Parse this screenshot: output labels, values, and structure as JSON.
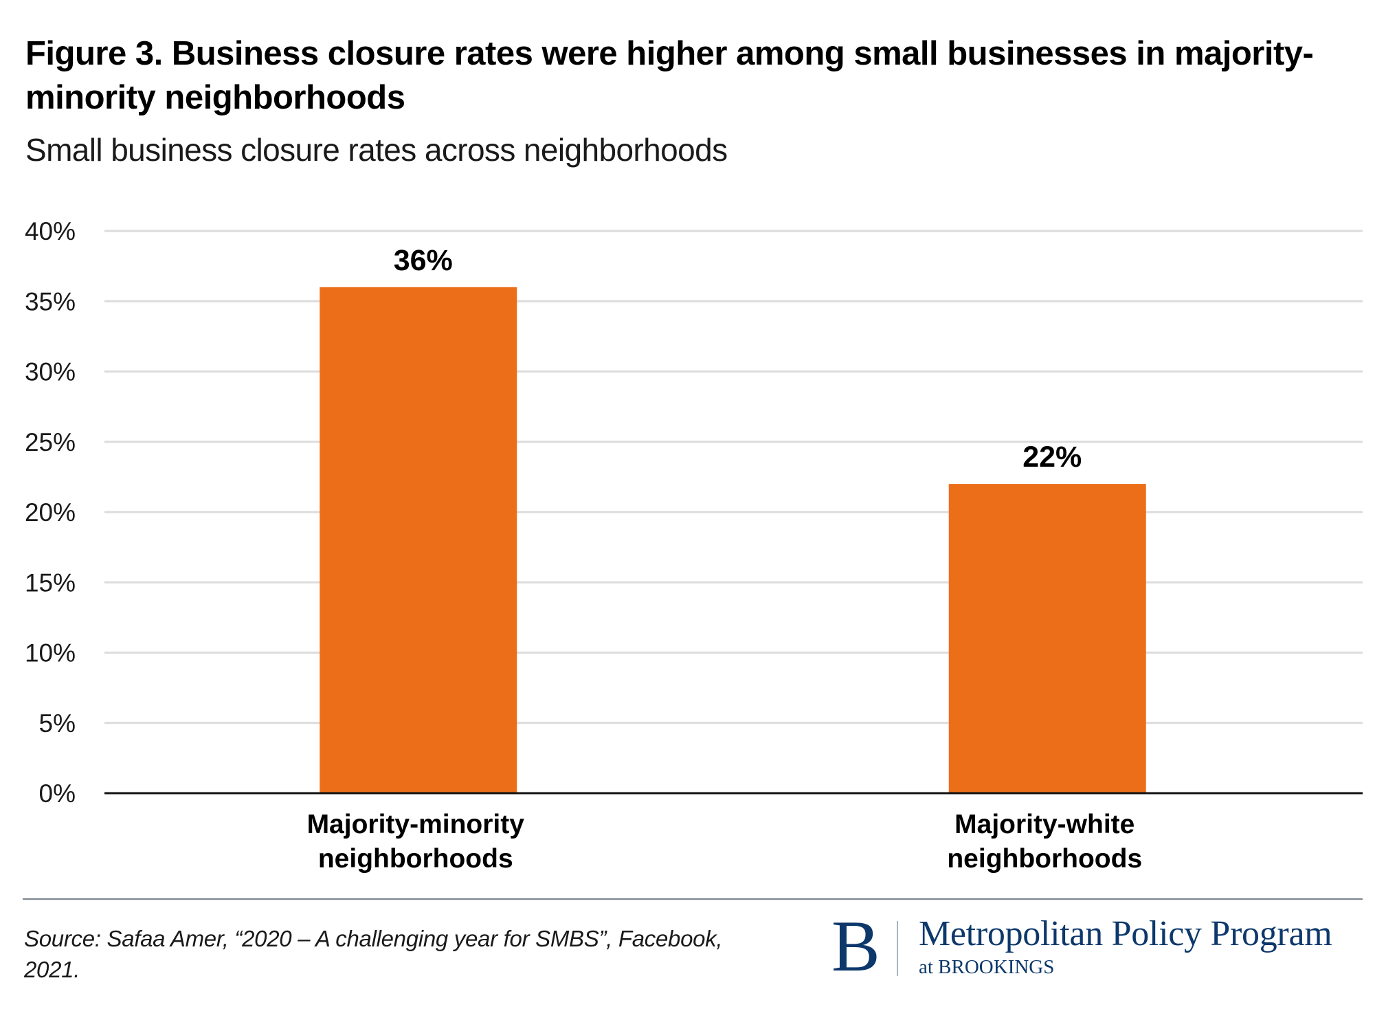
{
  "header": {
    "title": "Figure 3. Business closure rates were higher among small businesses in majority-minority neighborhoods",
    "title_lines": [
      "Figure 3. Business closure rates were higher among small businesses in majority-",
      "minority neighborhoods"
    ],
    "subtitle": "Small business closure rates across neighborhoods"
  },
  "chart_data": {
    "type": "bar",
    "title": "Figure 3. Business closure rates were higher among small businesses in majority-minority neighborhoods",
    "subtitle": "Small business closure rates across neighborhoods",
    "categories": [
      "Majority-minority neighborhoods",
      "Majority-white neighborhoods"
    ],
    "category_lines": [
      [
        "Majority-minority",
        "neighborhoods"
      ],
      [
        "Majority-white",
        "neighborhoods"
      ]
    ],
    "values": [
      36,
      22
    ],
    "value_labels": [
      "36%",
      "22%"
    ],
    "xlabel": "",
    "ylabel": "",
    "ylim": [
      0,
      40
    ],
    "yticks": [
      0,
      5,
      10,
      15,
      20,
      25,
      30,
      35,
      40
    ],
    "ytick_labels": [
      "0%",
      "5%",
      "10%",
      "15%",
      "20%",
      "25%",
      "30%",
      "35%",
      "40%"
    ],
    "grid": true,
    "legend": "none",
    "colors": {
      "bar": "#ED6E19",
      "grid": "#DCDCDC",
      "axis": "#111111"
    }
  },
  "footer": {
    "source_lines": [
      "Source: Safaa Amer, “2020 – A challenging year for SMBS”, Facebook,",
      "2021."
    ],
    "logo": {
      "mark": "B",
      "name": "Metropolitan Policy Program",
      "sub": "at BROOKINGS",
      "color": "#0D386B"
    }
  }
}
